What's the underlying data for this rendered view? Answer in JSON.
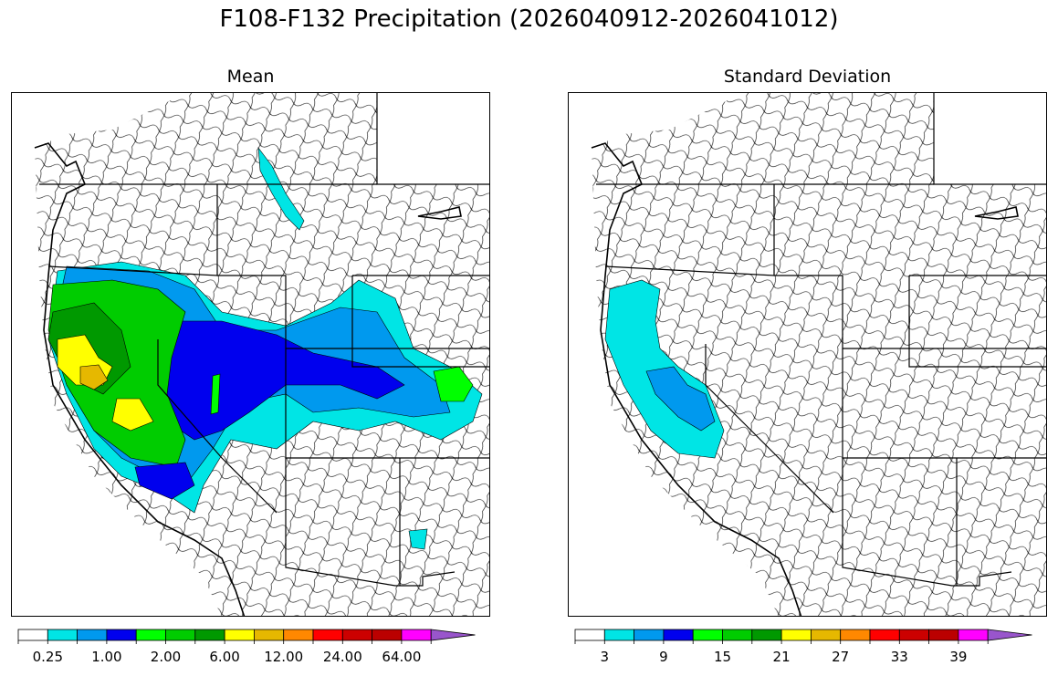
{
  "figure": {
    "title": "F108-F132 Precipitation (2026040912-2026041012)"
  },
  "panels": [
    {
      "title": "Mean",
      "colorbar": {
        "colors": [
          "#ffffff",
          "#00e5e5",
          "#0099ee",
          "#0000ee",
          "#00ff00",
          "#00cc00",
          "#009900",
          "#ffff00",
          "#e6b800",
          "#ff8800",
          "#ff0000",
          "#cc0000",
          "#bb0000",
          "#ff00ff",
          "#9955cc"
        ],
        "tick_labels": [
          "0.25",
          "1.00",
          "2.00",
          "6.00",
          "12.00",
          "24.00",
          "64.00"
        ],
        "extend": "max"
      }
    },
    {
      "title": "Standard Deviation",
      "colorbar": {
        "colors": [
          "#ffffff",
          "#00e5e5",
          "#0099ee",
          "#0000ee",
          "#00ff00",
          "#00cc00",
          "#009900",
          "#ffff00",
          "#e6b800",
          "#ff8800",
          "#ff0000",
          "#cc0000",
          "#bb0000",
          "#ff00ff",
          "#9955cc"
        ],
        "tick_labels": [
          "3",
          "9",
          "15",
          "21",
          "27",
          "33",
          "39"
        ],
        "extend": "max"
      }
    }
  ]
}
